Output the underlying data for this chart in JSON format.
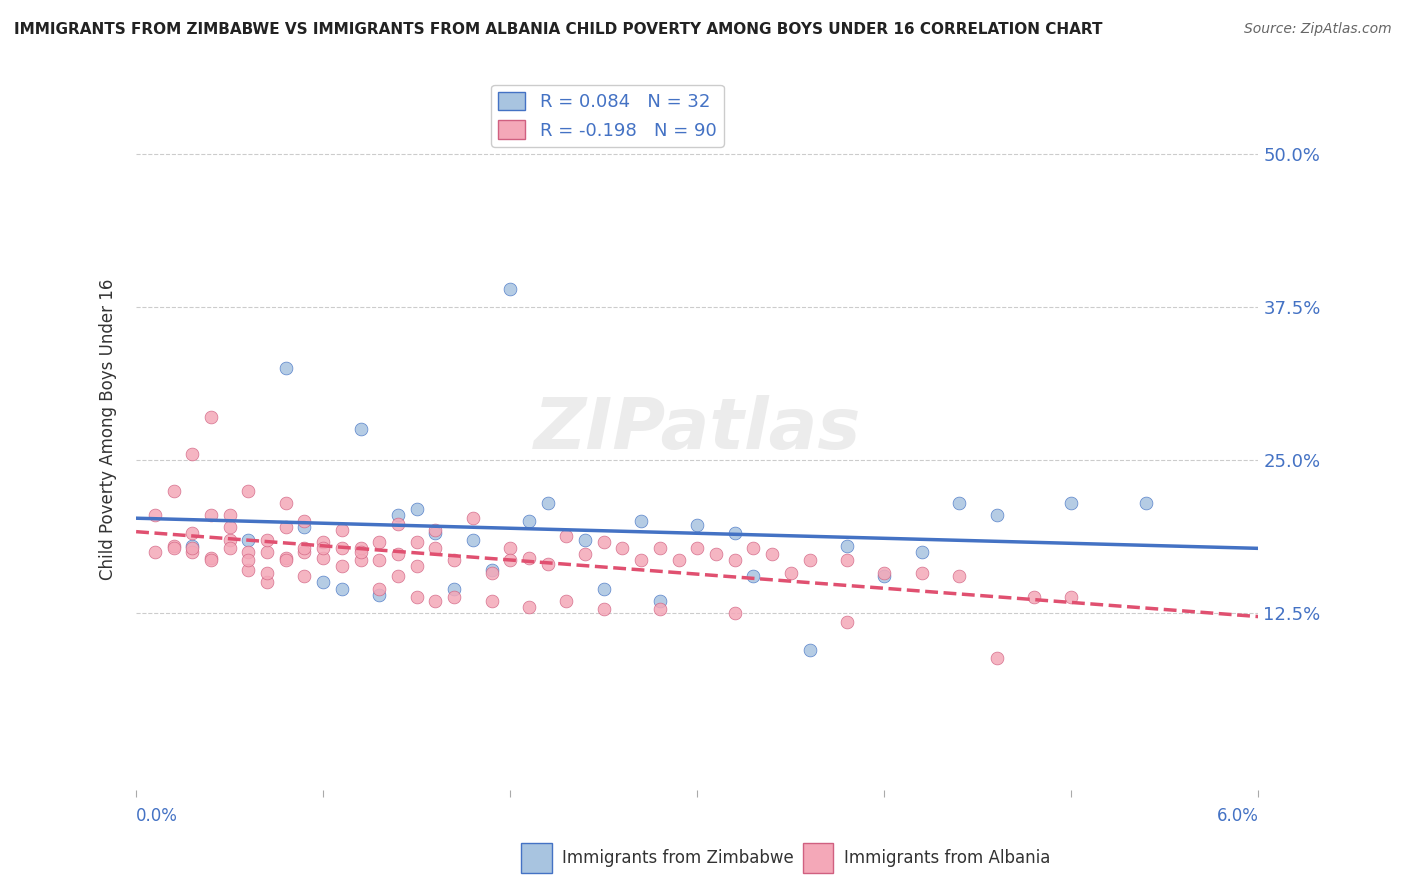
{
  "title": "IMMIGRANTS FROM ZIMBABWE VS IMMIGRANTS FROM ALBANIA CHILD POVERTY AMONG BOYS UNDER 16 CORRELATION CHART",
  "source": "Source: ZipAtlas.com",
  "ylabel": "Child Poverty Among Boys Under 16",
  "yticks": [
    "12.5%",
    "25.0%",
    "37.5%",
    "50.0%"
  ],
  "ytick_vals": [
    0.125,
    0.25,
    0.375,
    0.5
  ],
  "xlim": [
    0.0,
    0.06
  ],
  "ylim": [
    -0.02,
    0.57
  ],
  "legend_r1": "R = 0.084   N = 32",
  "legend_r2": "R = -0.198   N = 90",
  "color_zimbabwe": "#a8c4e0",
  "color_albania": "#f4a8b8",
  "line_color_zimbabwe": "#4472c4",
  "line_color_albania": "#e05070",
  "zim_x": [
    0.003,
    0.006,
    0.008,
    0.009,
    0.01,
    0.011,
    0.012,
    0.013,
    0.014,
    0.015,
    0.016,
    0.017,
    0.018,
    0.019,
    0.02,
    0.021,
    0.022,
    0.024,
    0.025,
    0.027,
    0.028,
    0.03,
    0.032,
    0.033,
    0.036,
    0.038,
    0.04,
    0.042,
    0.044,
    0.046,
    0.05,
    0.054
  ],
  "zim_y": [
    0.18,
    0.185,
    0.325,
    0.195,
    0.15,
    0.145,
    0.275,
    0.14,
    0.205,
    0.21,
    0.19,
    0.145,
    0.185,
    0.16,
    0.39,
    0.2,
    0.215,
    0.185,
    0.145,
    0.2,
    0.135,
    0.197,
    0.19,
    0.155,
    0.095,
    0.18,
    0.155,
    0.175,
    0.215,
    0.205,
    0.215,
    0.215
  ],
  "alb_x": [
    0.001,
    0.001,
    0.002,
    0.002,
    0.003,
    0.003,
    0.003,
    0.004,
    0.004,
    0.004,
    0.005,
    0.005,
    0.005,
    0.006,
    0.006,
    0.006,
    0.007,
    0.007,
    0.007,
    0.008,
    0.008,
    0.008,
    0.009,
    0.009,
    0.009,
    0.01,
    0.01,
    0.011,
    0.011,
    0.012,
    0.012,
    0.013,
    0.013,
    0.014,
    0.014,
    0.015,
    0.015,
    0.016,
    0.016,
    0.017,
    0.018,
    0.019,
    0.02,
    0.02,
    0.021,
    0.022,
    0.023,
    0.024,
    0.025,
    0.026,
    0.027,
    0.028,
    0.029,
    0.03,
    0.031,
    0.032,
    0.033,
    0.034,
    0.035,
    0.036,
    0.038,
    0.04,
    0.042,
    0.044,
    0.046,
    0.048,
    0.05,
    0.002,
    0.003,
    0.004,
    0.005,
    0.006,
    0.007,
    0.008,
    0.009,
    0.01,
    0.011,
    0.012,
    0.013,
    0.014,
    0.015,
    0.016,
    0.017,
    0.019,
    0.021,
    0.023,
    0.025,
    0.028,
    0.032,
    0.038
  ],
  "alb_y": [
    0.175,
    0.205,
    0.18,
    0.225,
    0.19,
    0.255,
    0.175,
    0.205,
    0.285,
    0.17,
    0.185,
    0.195,
    0.205,
    0.175,
    0.225,
    0.16,
    0.175,
    0.185,
    0.15,
    0.17,
    0.195,
    0.215,
    0.175,
    0.2,
    0.155,
    0.183,
    0.17,
    0.163,
    0.193,
    0.168,
    0.178,
    0.183,
    0.168,
    0.198,
    0.173,
    0.163,
    0.183,
    0.178,
    0.193,
    0.168,
    0.203,
    0.158,
    0.178,
    0.168,
    0.17,
    0.165,
    0.188,
    0.173,
    0.183,
    0.178,
    0.168,
    0.178,
    0.168,
    0.178,
    0.173,
    0.168,
    0.178,
    0.173,
    0.158,
    0.168,
    0.168,
    0.158,
    0.158,
    0.155,
    0.088,
    0.138,
    0.138,
    0.178,
    0.178,
    0.168,
    0.178,
    0.168,
    0.158,
    0.168,
    0.178,
    0.178,
    0.178,
    0.175,
    0.145,
    0.155,
    0.138,
    0.135,
    0.138,
    0.135,
    0.13,
    0.135,
    0.128,
    0.128,
    0.125,
    0.118
  ]
}
